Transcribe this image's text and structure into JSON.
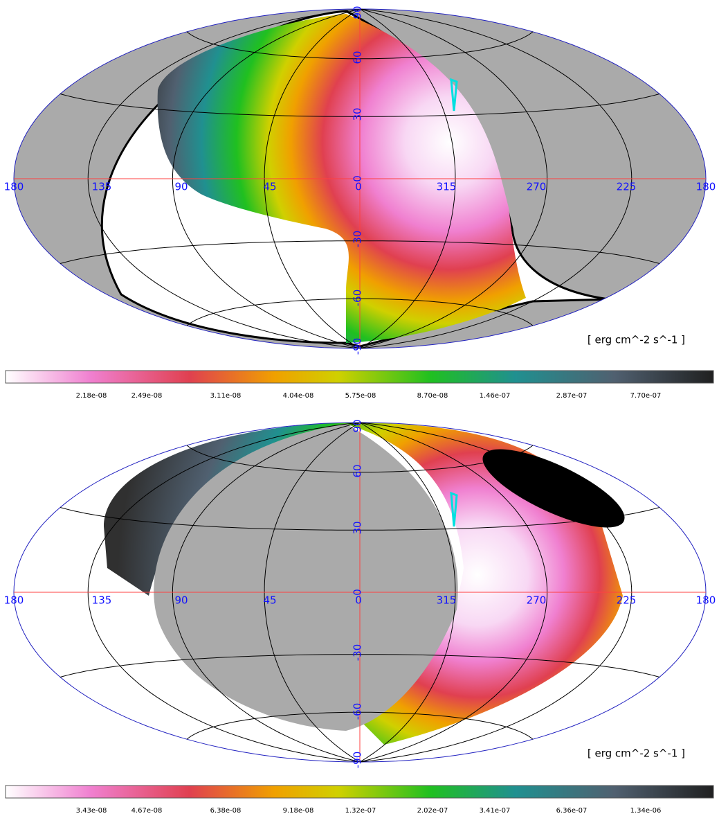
{
  "maps": [
    {
      "longitude_labels": [
        "180",
        "135",
        "90",
        "45",
        "0",
        "315",
        "270",
        "225",
        "180"
      ],
      "latitude_labels": [
        "90",
        "60",
        "30",
        "0",
        "-30",
        "-60",
        "-90"
      ],
      "unit": "[ erg cm^-2 s^-1 ]",
      "colorbar_labels": [
        "2.18e-08",
        "2.49e-08",
        "3.11e-08",
        "4.04e-08",
        "5.75e-08",
        "8.70e-08",
        "1.46e-07",
        "2.87e-07",
        "7.70e-07"
      ]
    },
    {
      "longitude_labels": [
        "180",
        "135",
        "90",
        "45",
        "0",
        "315",
        "270",
        "225",
        "180"
      ],
      "latitude_labels": [
        "90",
        "60",
        "30",
        "0",
        "-30",
        "-60",
        "-90"
      ],
      "unit": "[ erg cm^-2 s^-1 ]",
      "colorbar_labels": [
        "3.43e-08",
        "4.67e-08",
        "6.38e-08",
        "9.18e-08",
        "1.32e-07",
        "2.02e-07",
        "3.41e-07",
        "6.36e-07",
        "1.34e-06"
      ]
    }
  ]
}
